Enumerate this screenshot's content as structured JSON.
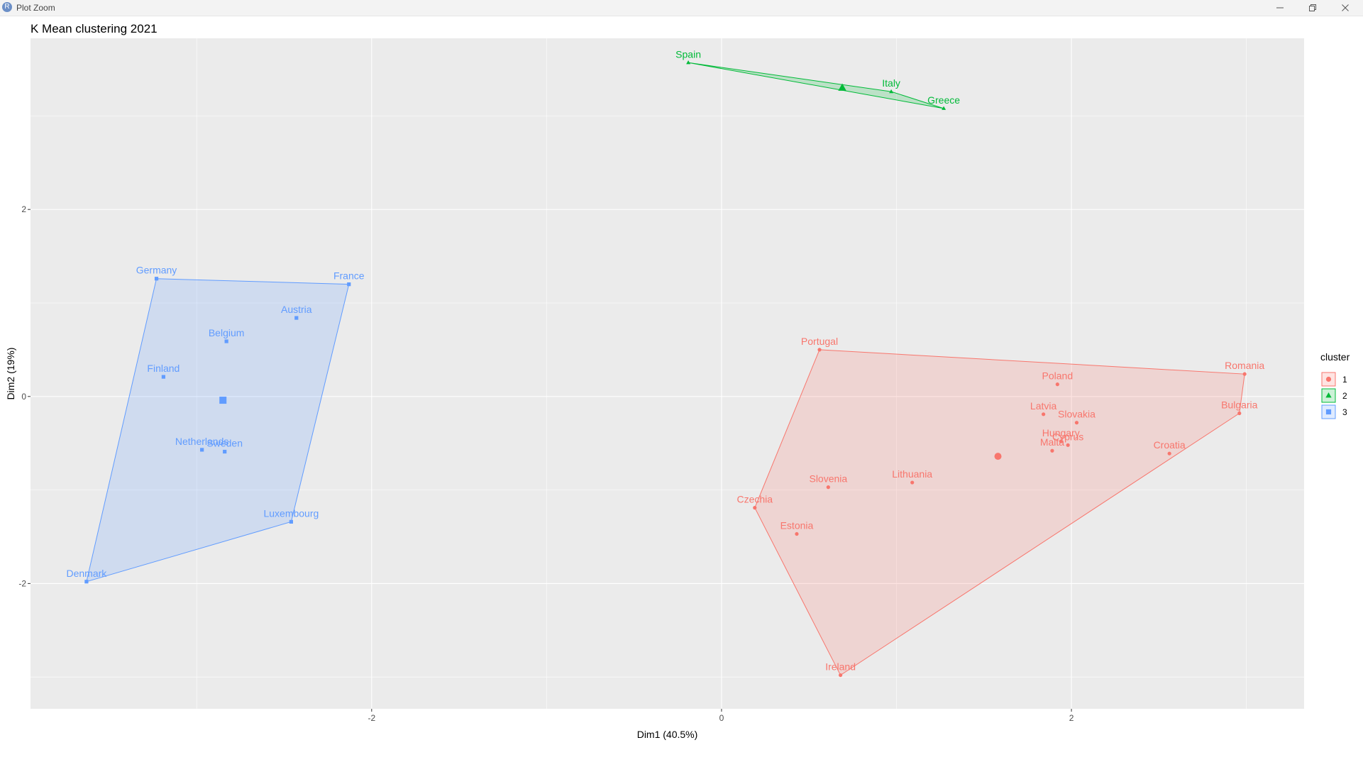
{
  "window": {
    "title": "Plot Zoom",
    "app_icon_label": "R",
    "icons": {
      "minimize": "minimize-icon",
      "maximize": "restore-icon",
      "close": "close-icon"
    }
  },
  "chart_data": {
    "type": "scatter",
    "title": "K Mean clustering 2021",
    "xlabel": "Dim1 (40.5%)",
    "ylabel": "Dim2 (19%)",
    "xlim": [
      -3.95,
      3.33
    ],
    "ylim": [
      -3.34,
      3.83
    ],
    "x_ticks": [
      -2,
      0,
      2
    ],
    "y_ticks": [
      -2,
      0,
      2
    ],
    "grid": true,
    "legend": {
      "title": "cluster",
      "placement": "right",
      "entries": [
        "1",
        "2",
        "3"
      ]
    },
    "series": [
      {
        "name": "1",
        "color": "#F8766D",
        "shape": "circle",
        "centroid": {
          "x": 1.58,
          "y": -0.64
        },
        "hull": [
          "Portugal",
          "Romania",
          "Bulgaria",
          "Ireland",
          "Czechia"
        ],
        "points": [
          {
            "label": "Portugal",
            "x": 0.56,
            "y": 0.5
          },
          {
            "label": "Romania",
            "x": 2.99,
            "y": 0.24
          },
          {
            "label": "Poland",
            "x": 1.92,
            "y": 0.13
          },
          {
            "label": "Latvia",
            "x": 1.84,
            "y": -0.19
          },
          {
            "label": "Slovakia",
            "x": 2.03,
            "y": -0.28
          },
          {
            "label": "Bulgaria",
            "x": 2.96,
            "y": -0.18
          },
          {
            "label": "Hungary",
            "x": 1.94,
            "y": -0.48
          },
          {
            "label": "Cyprus",
            "x": 1.98,
            "y": -0.52
          },
          {
            "label": "Malta",
            "x": 1.89,
            "y": -0.58
          },
          {
            "label": "Croatia",
            "x": 2.56,
            "y": -0.61
          },
          {
            "label": "Slovenia",
            "x": 0.61,
            "y": -0.97
          },
          {
            "label": "Lithuania",
            "x": 1.09,
            "y": -0.92
          },
          {
            "label": "Czechia",
            "x": 0.19,
            "y": -1.19
          },
          {
            "label": "Estonia",
            "x": 0.43,
            "y": -1.47
          },
          {
            "label": "Ireland",
            "x": 0.68,
            "y": -2.98
          }
        ]
      },
      {
        "name": "2",
        "color": "#00BA38",
        "shape": "triangle",
        "centroid": {
          "x": 0.69,
          "y": 3.3
        },
        "hull": [
          "Spain",
          "Italy",
          "Greece"
        ],
        "points": [
          {
            "label": "Spain",
            "x": -0.19,
            "y": 3.57
          },
          {
            "label": "Italy",
            "x": 0.97,
            "y": 3.26
          },
          {
            "label": "Greece",
            "x": 1.27,
            "y": 3.08
          }
        ]
      },
      {
        "name": "3",
        "color": "#619CFF",
        "shape": "square",
        "centroid": {
          "x": -2.85,
          "y": -0.04
        },
        "hull": [
          "Germany",
          "France",
          "Luxembourg",
          "Denmark"
        ],
        "points": [
          {
            "label": "Germany",
            "x": -3.23,
            "y": 1.26
          },
          {
            "label": "France",
            "x": -2.13,
            "y": 1.2
          },
          {
            "label": "Austria",
            "x": -2.43,
            "y": 0.84
          },
          {
            "label": "Belgium",
            "x": -2.83,
            "y": 0.59
          },
          {
            "label": "Finland",
            "x": -3.19,
            "y": 0.21
          },
          {
            "label": "Netherlands",
            "x": -2.97,
            "y": -0.57
          },
          {
            "label": "Sweden",
            "x": -2.84,
            "y": -0.59
          },
          {
            "label": "Luxembourg",
            "x": -2.46,
            "y": -1.34
          },
          {
            "label": "Denmark",
            "x": -3.63,
            "y": -1.98
          }
        ]
      }
    ]
  }
}
